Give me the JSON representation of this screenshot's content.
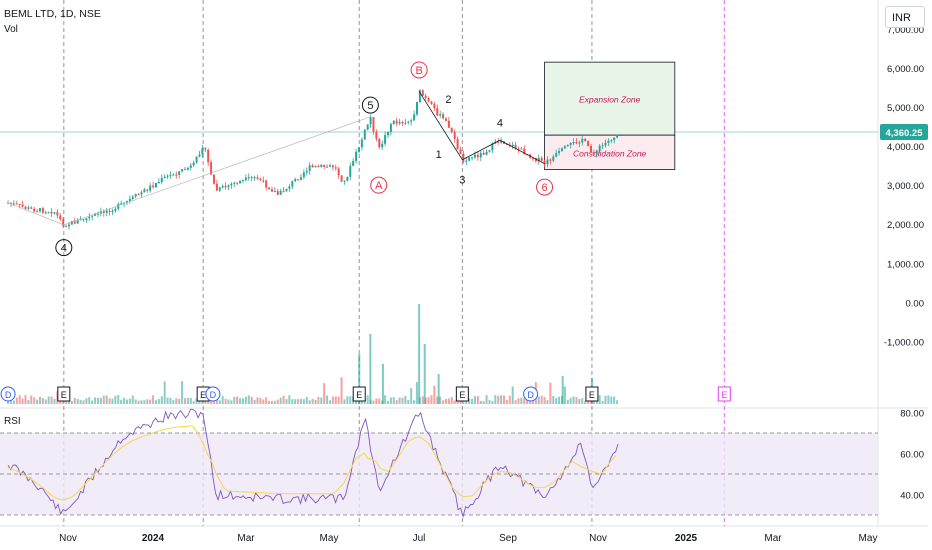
{
  "header": {
    "title": "BEML LTD, 1D, NSE",
    "volume_label": "Vol",
    "currency": "INR"
  },
  "rsi_panel": {
    "label": "RSI"
  },
  "colors": {
    "up": "#26a69a",
    "down": "#ef5350",
    "annotation": "#e8334a",
    "grid_dash": "#787b86",
    "rsi_line": "#7e57c2",
    "rsi_ma": "#f5d84e",
    "rsi_band": "#ede7f6",
    "expansion_fill": "#e8f5e9",
    "consolidation_fill": "#fdecef",
    "price_line": "#26a69a",
    "future_event_line": "#e040fb"
  },
  "chart_data": {
    "type": "candlestick",
    "symbol": "BEML LTD",
    "interval": "1D",
    "exchange": "NSE",
    "x_axis_labels": [
      "Nov",
      "2024",
      "Mar",
      "May",
      "Jul",
      "Sep",
      "Nov",
      "2025",
      "Mar",
      "May"
    ],
    "y_axis_labels": [
      "8,000.00",
      "7,000.00",
      "6,000.00",
      "5,000.00",
      "4,000.00",
      "3,000.00",
      "2,000.00",
      "1,000.00",
      "0.00",
      "-1,000.00"
    ],
    "ylim": [
      -1000,
      8000
    ],
    "last_price": 4360.25,
    "last_price_label": "4,360.25",
    "price_path": [
      {
        "date": "2023-09-19",
        "price": 2550
      },
      {
        "date": "2023-10-05",
        "price": 2380
      },
      {
        "date": "2023-10-22",
        "price": 2330
      },
      {
        "date": "2023-10-29",
        "price": 1980
      },
      {
        "date": "2023-11-15",
        "price": 2150
      },
      {
        "date": "2023-12-10",
        "price": 2500
      },
      {
        "date": "2024-01-10",
        "price": 3200
      },
      {
        "date": "2024-01-30",
        "price": 3500
      },
      {
        "date": "2024-02-06",
        "price": 4050
      },
      {
        "date": "2024-02-15",
        "price": 2850
      },
      {
        "date": "2024-02-28",
        "price": 3050
      },
      {
        "date": "2024-03-15",
        "price": 3200
      },
      {
        "date": "2024-03-31",
        "price": 2750
      },
      {
        "date": "2024-04-22",
        "price": 3450
      },
      {
        "date": "2024-05-10",
        "price": 3480
      },
      {
        "date": "2024-05-17",
        "price": 3050
      },
      {
        "date": "2024-05-28",
        "price": 4000
      },
      {
        "date": "2024-06-05",
        "price": 4750
      },
      {
        "date": "2024-06-11",
        "price": 3900
      },
      {
        "date": "2024-06-20",
        "price": 4600
      },
      {
        "date": "2024-07-05",
        "price": 4650
      },
      {
        "date": "2024-07-10",
        "price": 5400
      },
      {
        "date": "2024-07-24",
        "price": 4800
      },
      {
        "date": "2024-07-31",
        "price": 4550
      },
      {
        "date": "2024-08-10",
        "price": 3650
      },
      {
        "date": "2024-08-24",
        "price": 3800
      },
      {
        "date": "2024-09-06",
        "price": 4150
      },
      {
        "date": "2024-09-18",
        "price": 3950
      },
      {
        "date": "2024-10-08",
        "price": 3550
      },
      {
        "date": "2024-10-21",
        "price": 3900
      },
      {
        "date": "2024-11-04",
        "price": 4200
      },
      {
        "date": "2024-11-11",
        "price": 3800
      },
      {
        "date": "2024-12-01",
        "price": 4360
      }
    ],
    "rsi": {
      "ylim": [
        25,
        85
      ],
      "y_axis_labels": [
        "80.00",
        "60.00",
        "40.00"
      ],
      "bands": [
        30,
        50,
        70
      ],
      "path": [
        {
          "date": "2023-09-19",
          "rsi": 55
        },
        {
          "date": "2023-10-10",
          "rsi": 45
        },
        {
          "date": "2023-10-29",
          "rsi": 30
        },
        {
          "date": "2023-12-10",
          "rsi": 68
        },
        {
          "date": "2024-01-10",
          "rsi": 78
        },
        {
          "date": "2024-02-06",
          "rsi": 80
        },
        {
          "date": "2024-02-15",
          "rsi": 40
        },
        {
          "date": "2024-03-31",
          "rsi": 38
        },
        {
          "date": "2024-05-17",
          "rsi": 38
        },
        {
          "date": "2024-06-01",
          "rsi": 78
        },
        {
          "date": "2024-06-11",
          "rsi": 42
        },
        {
          "date": "2024-07-10",
          "rsi": 80
        },
        {
          "date": "2024-08-10",
          "rsi": 30
        },
        {
          "date": "2024-09-06",
          "rsi": 55
        },
        {
          "date": "2024-10-08",
          "rsi": 38
        },
        {
          "date": "2024-11-04",
          "rsi": 65
        },
        {
          "date": "2024-11-11",
          "rsi": 40
        },
        {
          "date": "2024-12-01",
          "rsi": 67
        }
      ]
    },
    "volume_scale": "relative (no numeric axis)",
    "annotations": [
      {
        "text": "4",
        "style": "circled-black",
        "date": "2023-10-29",
        "price": 1400
      },
      {
        "text": "5",
        "style": "circled-black",
        "date": "2024-06-05",
        "price": 5050
      },
      {
        "text": "A",
        "style": "circled-red",
        "date": "2024-06-11",
        "price": 3000
      },
      {
        "text": "B",
        "style": "circled-red",
        "date": "2024-07-10",
        "price": 5950
      },
      {
        "text": "1",
        "style": "plain-black",
        "date": "2024-07-24",
        "price": 3800
      },
      {
        "text": "2",
        "style": "plain-black",
        "date": "2024-07-31",
        "price": 5200
      },
      {
        "text": "3",
        "style": "plain-black",
        "date": "2024-08-10",
        "price": 3150
      },
      {
        "text": "4",
        "style": "plain-black",
        "date": "2024-09-06",
        "price": 4600
      },
      {
        "text": "6",
        "style": "circled-red",
        "date": "2024-10-08",
        "price": 2950
      }
    ],
    "zones": [
      {
        "label": "Expansion Zone",
        "from_date": "2024-10-08",
        "to_date": "2024-12-01",
        "low": 4280,
        "high": 6150
      },
      {
        "label": "Consolidation Zone",
        "from_date": "2024-10-08",
        "to_date": "2024-12-01",
        "low": 3400,
        "high": 4280
      }
    ],
    "event_markers": [
      {
        "text": "D",
        "date": "2023-09-19"
      },
      {
        "text": "E",
        "date": "2023-10-29"
      },
      {
        "text": "E",
        "date": "2024-02-06"
      },
      {
        "text": "D",
        "date": "2024-02-13"
      },
      {
        "text": "E",
        "date": "2024-05-28"
      },
      {
        "text": "E",
        "date": "2024-08-10"
      },
      {
        "text": "D",
        "date": "2024-09-28"
      },
      {
        "text": "E",
        "date": "2024-11-11"
      },
      {
        "text": "E",
        "date": "2025-02-14",
        "future": true
      }
    ]
  }
}
